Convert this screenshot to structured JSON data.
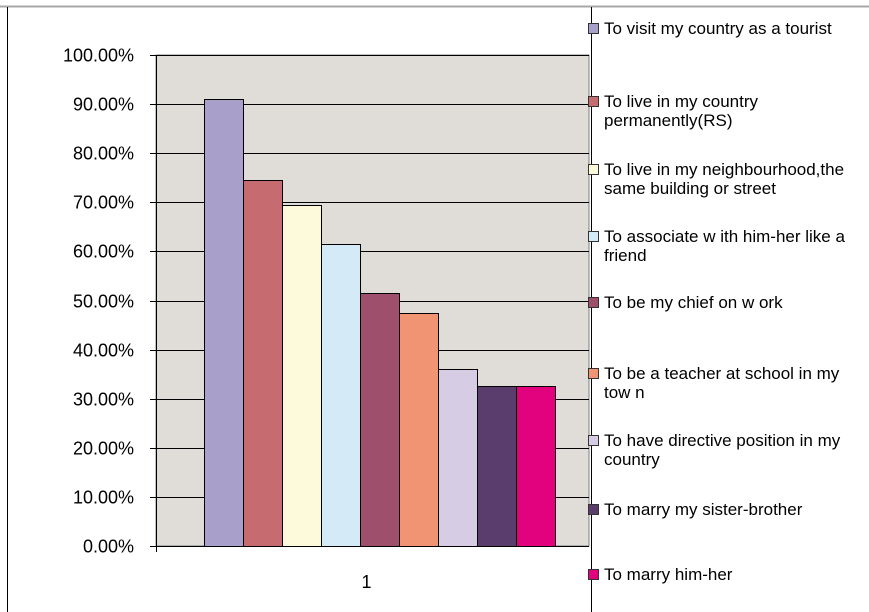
{
  "chart_data": {
    "type": "bar",
    "categories": [
      "1"
    ],
    "series": [
      {
        "name": "To visit my country as a tourist",
        "values": [
          91
        ],
        "color": "#A99FCB"
      },
      {
        "name": "To live in my country permanently(RS)",
        "values": [
          74.5
        ],
        "color": "#C66B6F"
      },
      {
        "name": "To live in my neighbourhood,the same building or street",
        "values": [
          69.5
        ],
        "color": "#FDF9DB"
      },
      {
        "name": "To associate w ith him-her like a friend",
        "values": [
          61.5
        ],
        "color": "#D4EAF7"
      },
      {
        "name": "To be my chief on w ork",
        "values": [
          51.5
        ],
        "color": "#9D4F6B"
      },
      {
        "name": "To be a teacher at school in my tow n",
        "values": [
          47.5
        ],
        "color": "#F09474"
      },
      {
        "name": "To have directive position in my country",
        "values": [
          36
        ],
        "color": "#D6CCE4"
      },
      {
        "name": "To marry my sister-brother",
        "values": [
          32.5
        ],
        "color": "#5A3D6C"
      },
      {
        "name": "To marry him-her",
        "values": [
          32.5
        ],
        "color": "#E3027D"
      }
    ],
    "y_ticks": [
      "0.00%",
      "10.00%",
      "20.00%",
      "30.00%",
      "40.00%",
      "50.00%",
      "60.00%",
      "70.00%",
      "80.00%",
      "90.00%",
      "100.00%"
    ],
    "x_ticks": [
      "1"
    ],
    "ylim": [
      0,
      100
    ],
    "grid": true,
    "legend_position": "right",
    "plot_background": "#E0DCD8"
  }
}
